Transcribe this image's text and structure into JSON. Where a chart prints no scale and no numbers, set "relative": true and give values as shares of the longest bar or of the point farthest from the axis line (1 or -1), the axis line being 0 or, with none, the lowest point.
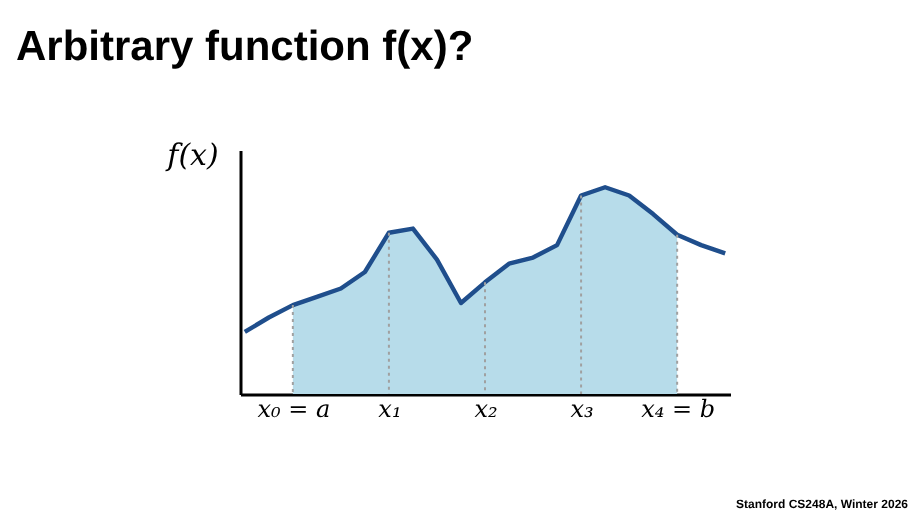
{
  "chart_data": {
    "type": "line",
    "title": "Arbitrary function f(x)?",
    "ylabel": "f(x)",
    "relative": true,
    "categories": [
      null,
      null,
      "x₀ = a",
      null,
      null,
      null,
      "x₁",
      null,
      null,
      null,
      "x₂",
      null,
      null,
      null,
      "x₃",
      null,
      null,
      null,
      "x₄ = b",
      null,
      null
    ],
    "series": [
      {
        "type": "area",
        "color": "#b7dcea",
        "values": [
          null,
          null,
          0.43,
          0.47,
          0.51,
          0.59,
          0.78,
          0.8,
          0.65,
          0.44,
          0.54,
          0.63,
          0.66,
          0.72,
          0.96,
          1,
          0.96,
          0.87,
          0.77,
          null,
          null
        ]
      },
      {
        "type": "line",
        "color": "#1f4e8c",
        "values": [
          0.3,
          0.37,
          0.43,
          0.47,
          0.51,
          0.59,
          0.78,
          0.8,
          0.65,
          0.44,
          0.54,
          0.63,
          0.66,
          0.72,
          0.96,
          1,
          0.96,
          0.87,
          0.77,
          0.72,
          0.68
        ]
      }
    ],
    "ref_lines": [
      {
        "axis": "x",
        "value": "x₀ = a",
        "color": "#a0a0a0",
        "line_style": "dotted"
      },
      {
        "axis": "x",
        "value": "x₁",
        "color": "#a0a0a0",
        "line_style": "dotted"
      },
      {
        "axis": "x",
        "value": "x₂",
        "color": "#a0a0a0",
        "line_style": "dotted"
      },
      {
        "axis": "x",
        "value": "x₃",
        "color": "#a0a0a0",
        "line_style": "dotted"
      },
      {
        "axis": "x",
        "value": "x₄ = b",
        "color": "#a0a0a0",
        "line_style": "dotted"
      }
    ],
    "annotations": [
      "Stanford CS248A, Winter 2026"
    ],
    "grid": false
  }
}
